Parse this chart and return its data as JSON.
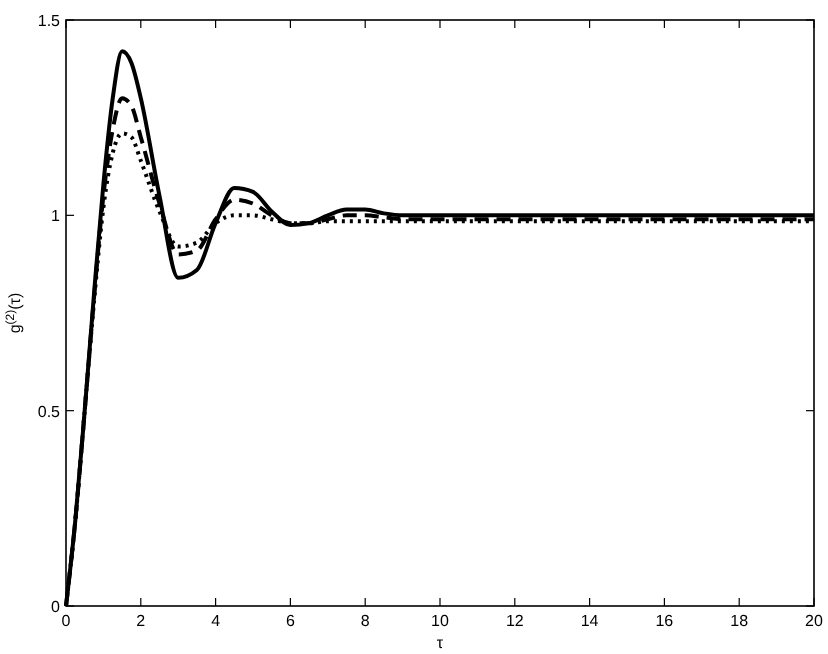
{
  "chart_data": {
    "type": "line",
    "xlabel": "τ",
    "ylabel": "g$^{(2)}$(τ)",
    "xlim": [
      0,
      20
    ],
    "ylim": [
      0,
      1.5
    ],
    "xticks": [
      0,
      2,
      4,
      6,
      8,
      10,
      12,
      14,
      16,
      18,
      20
    ],
    "yticks": [
      0,
      0.5,
      1,
      1.5
    ],
    "grid": false,
    "marker": "none",
    "x": [
      0,
      0.25,
      0.5,
      0.75,
      1,
      1.25,
      1.5,
      1.75,
      2,
      2.5,
      3,
      3.5,
      4,
      4.5,
      5,
      5.5,
      6,
      6.5,
      7,
      7.5,
      8,
      8.5,
      9,
      10,
      12,
      14,
      16,
      18,
      20
    ],
    "series": [
      {
        "color": "#000000",
        "line_style": "solid",
        "values": [
          0,
          0.22,
          0.5,
          0.8,
          1.08,
          1.3,
          1.42,
          1.39,
          1.3,
          1.05,
          0.84,
          0.86,
          0.98,
          1.07,
          1.06,
          1.01,
          0.975,
          0.98,
          1.0,
          1.015,
          1.015,
          1.005,
          1.0,
          1.0,
          1.0,
          1.0,
          1.0,
          1.0,
          1.0
        ]
      },
      {
        "color": "#000000",
        "line_style": "dashed",
        "values": [
          0,
          0.22,
          0.5,
          0.79,
          1.05,
          1.22,
          1.3,
          1.28,
          1.2,
          1.03,
          0.9,
          0.91,
          0.99,
          1.04,
          1.03,
          1.0,
          0.98,
          0.98,
          0.99,
          1.0,
          1.0,
          0.995,
          0.99,
          0.99,
          0.99,
          0.99,
          0.99,
          0.99,
          0.99
        ]
      },
      {
        "color": "#000000",
        "line_style": "dotted",
        "values": [
          0,
          0.22,
          0.5,
          0.78,
          1.02,
          1.16,
          1.21,
          1.2,
          1.14,
          1.01,
          0.92,
          0.93,
          0.98,
          1.0,
          1.0,
          0.99,
          0.98,
          0.98,
          0.985,
          0.985,
          0.985,
          0.985,
          0.985,
          0.985,
          0.985,
          0.985,
          0.985,
          0.985,
          0.985
        ]
      }
    ]
  }
}
